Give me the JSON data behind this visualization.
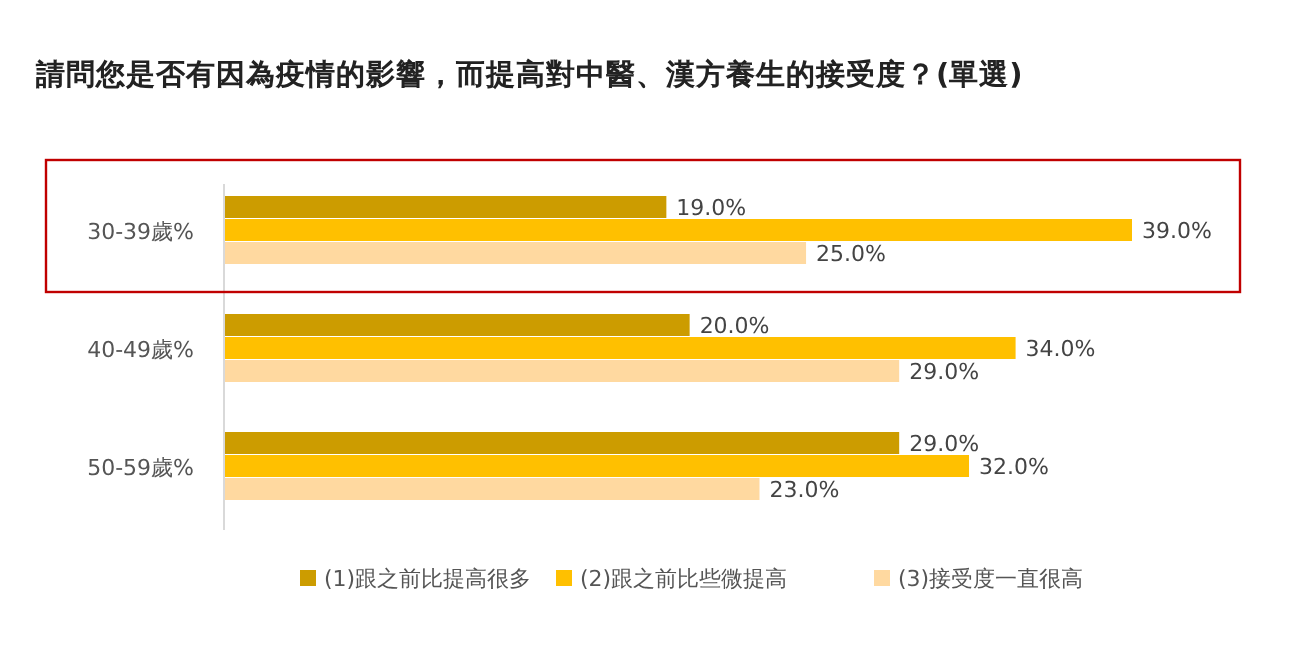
{
  "chart_data": {
    "type": "bar",
    "orientation": "horizontal",
    "title": "請問您是否有因為疫情的影響，而提高對中醫、漢方養生的接受度？(單選)",
    "categories": [
      "30-39歲%",
      "40-49歲%",
      "50-59歲%"
    ],
    "tick_labels": "y",
    "legend": "bottom",
    "series": [
      {
        "name": "(1)跟之前比提高很多",
        "color": "#cc9c00",
        "values": [
          19.0,
          20.0,
          29.0
        ],
        "value_labels": [
          "19.0%",
          "20.0%",
          "29.0%"
        ]
      },
      {
        "name": "(2)跟之前比些微提高",
        "color": "#ffc000",
        "values": [
          39.0,
          34.0,
          32.0
        ],
        "value_labels": [
          "39.0%",
          "34.0%",
          "32.0%"
        ]
      },
      {
        "name": "(3)接受度一直很高",
        "color": "#ffd9a0",
        "values": [
          25.0,
          29.0,
          23.0
        ],
        "value_labels": [
          "25.0%",
          "29.0%",
          "23.0%"
        ]
      }
    ]
  }
}
